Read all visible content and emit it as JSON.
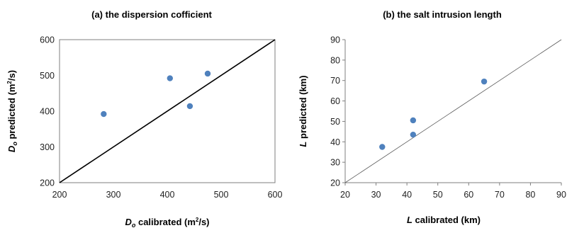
{
  "chart_data": [
    {
      "type": "scatter",
      "title": "(a) the dispersion cofficient",
      "xlabel": {
        "symbol": "D",
        "subscript": "o",
        "rest": " calibrated (m",
        "sup": "2",
        "end": "/s)"
      },
      "ylabel": {
        "symbol": "D",
        "subscript": "o",
        "rest": " predicted (m",
        "sup": "2",
        "end": "/s)"
      },
      "xlim": [
        200,
        600
      ],
      "ylim": [
        200,
        600
      ],
      "xticks": [
        "200",
        "300",
        "400",
        "500",
        "600"
      ],
      "yticks": [
        "200",
        "300",
        "400",
        "500",
        "600"
      ],
      "grid": false,
      "reference_line": "y = x",
      "points": [
        {
          "x": 282,
          "y": 392
        },
        {
          "x": 405,
          "y": 492
        },
        {
          "x": 442,
          "y": 414
        },
        {
          "x": 475,
          "y": 505
        }
      ],
      "marker_color": "#4f81bd",
      "line_color": "#000000"
    },
    {
      "type": "scatter",
      "title": "(b) the salt intrusion length",
      "xlabel": {
        "symbol": "L",
        "rest": " calibrated (km)"
      },
      "ylabel": {
        "symbol": "L",
        "rest": " predicted (km)"
      },
      "xlim": [
        20,
        90
      ],
      "ylim": [
        20,
        90
      ],
      "xticks": [
        "20",
        "30",
        "40",
        "50",
        "60",
        "70",
        "80",
        "90"
      ],
      "yticks": [
        "20",
        "30",
        "40",
        "50",
        "60",
        "70",
        "80",
        "90"
      ],
      "grid": false,
      "reference_line": "y = x",
      "points": [
        {
          "x": 32,
          "y": 37.5
        },
        {
          "x": 42,
          "y": 43.5
        },
        {
          "x": 42,
          "y": 50.5
        },
        {
          "x": 65,
          "y": 69.5
        }
      ],
      "marker_color": "#4f81bd",
      "line_color": "#595959"
    }
  ]
}
